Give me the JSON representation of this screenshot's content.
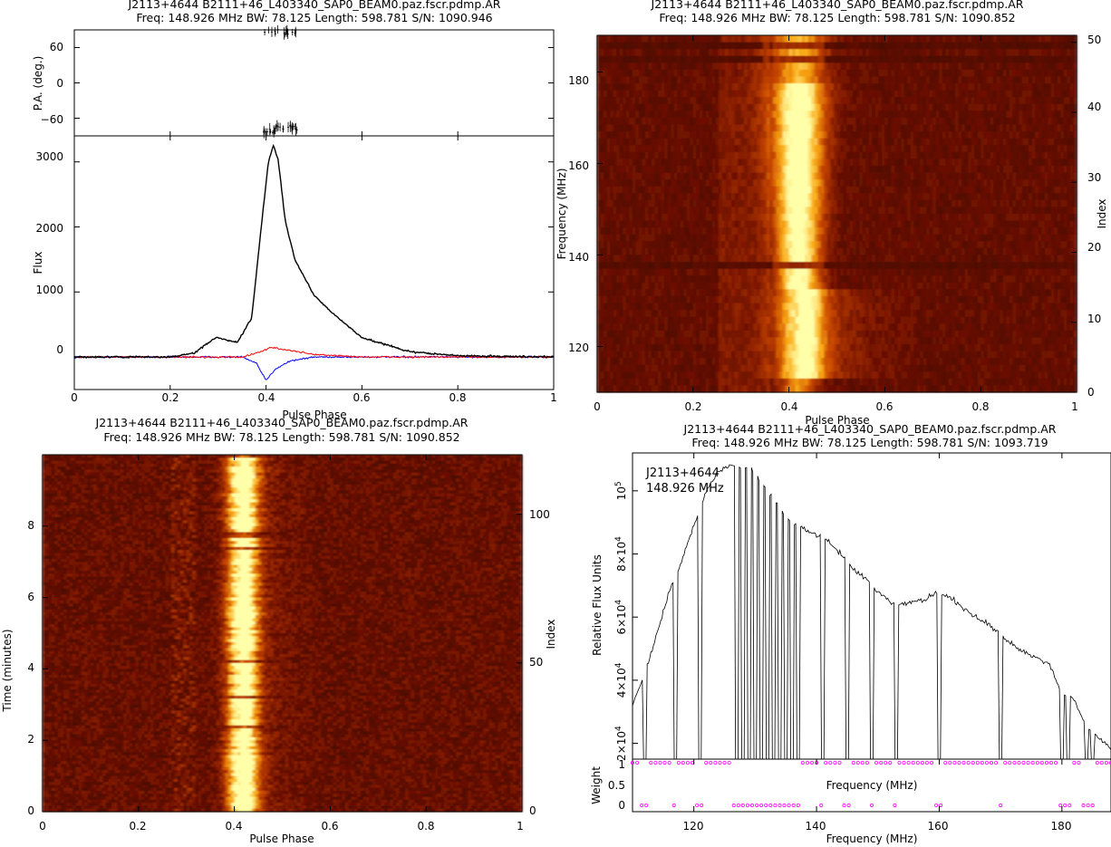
{
  "panels": {
    "profile": {
      "title_line1": "J2113+4644  B2111+46_L403340_SAP0_BEAM0.paz.fscr.pdmp.AR",
      "title_line2": "Freq: 148.926 MHz  BW: 78.125  Length: 598.781  S/N: 1090.946",
      "pa_ylabel": "P.A. (deg.)",
      "pa_ticks": [
        "60",
        "0",
        "−60"
      ],
      "flux_ylabel": "Flux",
      "flux_ticks": [
        "3000",
        "2000",
        "1000",
        "0"
      ],
      "xlabel": "Pulse Phase",
      "xticks": [
        "0",
        "0.2",
        "0.4",
        "0.6",
        "0.8",
        "1"
      ]
    },
    "freq_phase": {
      "title_line1": "J2113+4644  B2111+46_L403340_SAP0_BEAM0.paz.fscr.pdmp.AR",
      "title_line2": "Freq: 148.926 MHz  BW: 78.125  Length: 598.781  S/N: 1090.852",
      "ylabel": "Frequency (MHz)",
      "yticks": [
        "180",
        "160",
        "140",
        "120"
      ],
      "y2label": "Index",
      "y2ticks": [
        "50",
        "40",
        "30",
        "20",
        "10",
        "0"
      ],
      "xlabel": "Pulse Phase",
      "xticks": [
        "0",
        "0.2",
        "0.4",
        "0.6",
        "0.8",
        "1"
      ]
    },
    "time_phase": {
      "title_line1": "J2113+4644  B2111+46_L403340_SAP0_BEAM0.paz.fscr.pdmp.AR",
      "title_line2": "Freq: 148.926 MHz  BW: 78.125  Length: 598.781  S/N: 1090.852",
      "ylabel": "Time (minutes)",
      "yticks": [
        "8",
        "6",
        "4",
        "2",
        "0"
      ],
      "y2label": "Index",
      "y2ticks": [
        "100",
        "50",
        "0"
      ],
      "xlabel": "Pulse Phase",
      "xticks": [
        "0",
        "0.2",
        "0.4",
        "0.6",
        "0.8",
        "1"
      ]
    },
    "bandpass": {
      "title_line1": "J2113+4644  B2111+46_L403340_SAP0_BEAM0.paz.fscr.pdmp.AR",
      "title_line2": "Freq: 148.926 MHz  BW: 78.125  Length: 598.781  S/N: 1093.719",
      "annotation_line1": "J2113+4644",
      "annotation_line2": "148.926 MHz",
      "ylabel": "Relative Flux Units",
      "yticks": [
        "10^5",
        "8×10^4",
        "6×10^4",
        "4×10^4",
        "2×10^4"
      ],
      "weight_label": "Weight",
      "weight_ticks": [
        "1",
        "0.5",
        "0"
      ],
      "inner_xlabel": "Frequency (MHz)",
      "xlabel": "Frequency (MHz)",
      "xticks": [
        "120",
        "140",
        "160",
        "180"
      ]
    }
  },
  "colors": {
    "stokes_I": "#000000",
    "linear": "#ff0000",
    "circular": "#0000ff",
    "weights": "#ff00ff",
    "heat_low": "#3a0000",
    "heat_mid": "#c04000",
    "heat_high": "#ffff80"
  },
  "chart_data": [
    {
      "type": "line",
      "panel": "polarization profile",
      "xlim": [
        0,
        1
      ],
      "ylim": [
        -500,
        3400
      ],
      "peak": {
        "phase": 0.415,
        "flux": 3250
      },
      "precursor": {
        "phase": 0.295,
        "flux": 300
      },
      "series": [
        {
          "color": "black",
          "x": [
            0,
            0.2,
            0.25,
            0.295,
            0.34,
            0.37,
            0.39,
            0.405,
            0.415,
            0.425,
            0.44,
            0.46,
            0.5,
            0.55,
            0.6,
            0.7,
            0.8,
            1.0
          ],
          "y": [
            0,
            0,
            60,
            300,
            220,
            600,
            2000,
            3000,
            3250,
            3050,
            2100,
            1500,
            950,
            600,
            300,
            80,
            20,
            0
          ]
        },
        {
          "color": "red",
          "x": [
            0,
            0.35,
            0.39,
            0.41,
            0.45,
            0.5,
            0.6,
            1.0
          ],
          "y": [
            0,
            0,
            80,
            150,
            100,
            40,
            0,
            0
          ]
        },
        {
          "color": "blue",
          "x": [
            0,
            0.35,
            0.38,
            0.4,
            0.42,
            0.45,
            0.5,
            1.0
          ],
          "y": [
            0,
            0,
            -100,
            -360,
            -180,
            -60,
            0,
            0
          ]
        }
      ],
      "pa_ylim": [
        -90,
        90
      ]
    },
    {
      "type": "heatmap",
      "panel": "frequency vs phase",
      "xlim": [
        0,
        1
      ],
      "ylim": [
        110,
        188
      ],
      "index_range": [
        0,
        51
      ],
      "pulse_phase_center": 0.42,
      "notes": "bright pulse near phase 0.42 across all channels, wider at 120-130 MHz"
    },
    {
      "type": "heatmap",
      "panel": "time vs phase",
      "xlim": [
        0,
        1
      ],
      "ylim": [
        0,
        10
      ],
      "index_range": [
        0,
        120
      ],
      "pulse_phase_center": 0.415
    },
    {
      "type": "line",
      "panel": "bandpass",
      "xlim": [
        110,
        188
      ],
      "ylim": [
        15000,
        112000
      ],
      "x": [
        110,
        112,
        114,
        116,
        118,
        120,
        122,
        124,
        126,
        128,
        130,
        132,
        134,
        136,
        138,
        140,
        142,
        144,
        146,
        148,
        150,
        152,
        154,
        156,
        158,
        160,
        162,
        164,
        166,
        168,
        170,
        172,
        174,
        176,
        178,
        180,
        182,
        184,
        186,
        188
      ],
      "y": [
        32000,
        42000,
        55000,
        68000,
        78000,
        89000,
        100000,
        106000,
        108000,
        108000,
        106000,
        100000,
        94000,
        90000,
        88000,
        86000,
        84000,
        80000,
        75000,
        72000,
        68000,
        65000,
        64000,
        65000,
        66000,
        68000,
        66000,
        63000,
        60000,
        58000,
        54000,
        51000,
        49000,
        47000,
        45000,
        36000,
        34000,
        25000,
        22000,
        18000
      ],
      "weights_zero_at_mhz": [
        112,
        117,
        121,
        127,
        128,
        129,
        130,
        131,
        132,
        133,
        134,
        135,
        136,
        137,
        141,
        145,
        149,
        153,
        160,
        170,
        180,
        181,
        184,
        185
      ]
    }
  ]
}
